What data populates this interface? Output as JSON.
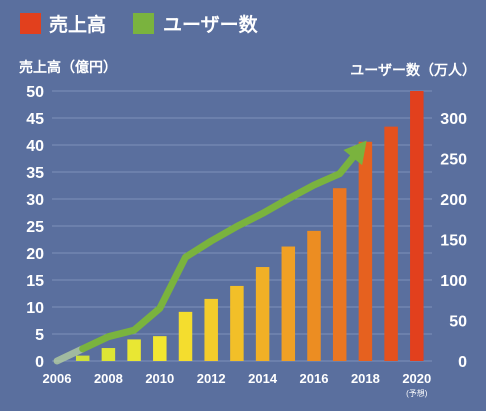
{
  "chart_data": {
    "type": "bar+line",
    "legend": {
      "placement": "top-left",
      "items": [
        {
          "label": "売上高",
          "color": "#e2401d"
        },
        {
          "label": "ユーザー数",
          "color": "#7ab33e"
        }
      ]
    },
    "y_left": {
      "label": "売上高（億円）",
      "min": 0,
      "max": 50,
      "ticks": [
        0,
        5,
        10,
        15,
        20,
        25,
        30,
        35,
        40,
        45,
        50
      ]
    },
    "y_right": {
      "label": "ユーザー数（万人）",
      "min": 0,
      "max": 333,
      "ticks": [
        0,
        50,
        100,
        150,
        200,
        250,
        300
      ]
    },
    "x_axis": {
      "ticks": [
        "2006",
        "2008",
        "2010",
        "2012",
        "2014",
        "2016",
        "2018",
        "2020"
      ],
      "note": "(予想)"
    },
    "grid": true,
    "categories": [
      "2006",
      "2007",
      "2008",
      "2009",
      "2010",
      "2011",
      "2012",
      "2013",
      "2014",
      "2015",
      "2016",
      "2017",
      "2018",
      "2019",
      "2020"
    ],
    "series": [
      {
        "name": "売上高",
        "axis": "left",
        "kind": "bar",
        "values": [
          0,
          1,
          2.4,
          4,
          4.6,
          9.1,
          11.5,
          13.9,
          17.4,
          21.2,
          24.1,
          32,
          40.6,
          43.4,
          50
        ],
        "colors": [
          "#d8e23c",
          "#cfe03a",
          "#dde535",
          "#e9e733",
          "#f2e631",
          "#f4dd2e",
          "#f3cc2b",
          "#f2bf28",
          "#f1b026",
          "#f0a024",
          "#ec8d22",
          "#e97621",
          "#e6611f",
          "#e4511e",
          "#e2401d"
        ]
      },
      {
        "name": "ユーザー数",
        "axis": "right",
        "kind": "line",
        "x": [
          2006,
          2007,
          2008,
          2009,
          2010,
          2011,
          2012,
          2013,
          2014,
          2015,
          2016,
          2017,
          2018
        ],
        "values": [
          0,
          15,
          30,
          38,
          65,
          128,
          148,
          166,
          182,
          200,
          217,
          231,
          270
        ],
        "color": "#7ab33e"
      }
    ]
  }
}
